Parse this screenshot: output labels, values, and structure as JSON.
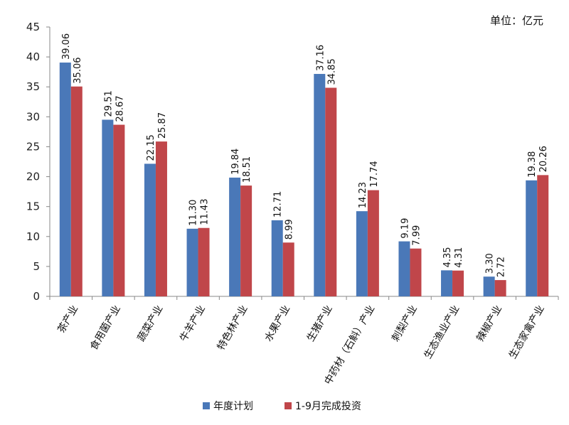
{
  "unit_label": "单位：亿元",
  "colors": {
    "plan": "#4a78b8",
    "actual": "#c0464a",
    "axis": "#888888"
  },
  "chart_data": {
    "type": "bar",
    "title": "",
    "xlabel": "",
    "ylabel": "",
    "ylim": [
      0,
      45
    ],
    "yticks": [
      0,
      5,
      10,
      15,
      20,
      25,
      30,
      35,
      40,
      45
    ],
    "grid": false,
    "legend_position": "bottom",
    "categories": [
      "茶产业",
      "食用菌产业",
      "蔬菜产业",
      "牛羊产业",
      "特色林产业",
      "水果产业",
      "生猪产业",
      "中药材（石斛）产业",
      "刺梨产业",
      "生态渔业产业",
      "辣椒产业",
      "生态家禽产业"
    ],
    "series": [
      {
        "name": "年度计划",
        "values": [
          39.06,
          29.51,
          22.15,
          11.3,
          19.84,
          12.71,
          37.16,
          14.23,
          9.19,
          4.35,
          3.3,
          19.38
        ],
        "labels": [
          "39.06",
          "29.51",
          "22.15",
          "11.30",
          "19.84",
          "12.71",
          "37.16",
          "14.23",
          "9.19",
          "4.35",
          "3.30",
          "19.38"
        ]
      },
      {
        "name": "1-9月完成投资",
        "values": [
          35.06,
          28.67,
          25.87,
          11.43,
          18.51,
          8.99,
          34.85,
          17.74,
          7.99,
          4.31,
          2.72,
          20.26
        ],
        "labels": [
          "35.06",
          "28.67",
          "25.87",
          "11.43",
          "18.51",
          "8.99",
          "34.85",
          "17.74",
          "7.99",
          "4.31",
          "2.72",
          "20.26"
        ]
      }
    ]
  }
}
